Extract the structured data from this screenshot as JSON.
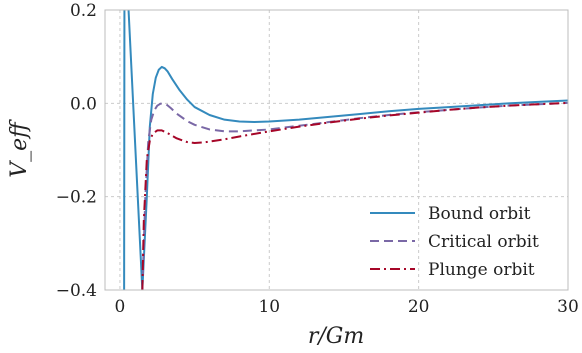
{
  "chart_data": {
    "type": "line",
    "title": "",
    "xlabel": "r/Gm",
    "ylabel": "V_eff",
    "xlim": [
      -1,
      30
    ],
    "ylim": [
      -0.4,
      0.2
    ],
    "x_ticks": [
      0,
      10,
      20,
      30
    ],
    "x_tick_labels": [
      "0",
      "10",
      "20",
      "30"
    ],
    "y_ticks": [
      0.2,
      0.0,
      -0.2,
      -0.4
    ],
    "y_tick_labels": [
      "0.2",
      "0.0",
      "−0.2",
      "−0.4"
    ],
    "grid": true,
    "legend_position": "lower-right",
    "series": [
      {
        "name": "Bound orbit",
        "color": "#348abd",
        "dash": "solid",
        "x": [
          0.28,
          0.3,
          0.35,
          0.4,
          0.5,
          1.5,
          1.8,
          2.0,
          2.2,
          2.4,
          2.6,
          2.8,
          3.0,
          3.2,
          3.5,
          4.0,
          4.5,
          5.0,
          6.0,
          7.0,
          8.0,
          9.0,
          10.0,
          12.0,
          14.0,
          16.0,
          18.0,
          20.0,
          22.0,
          24.0,
          26.0,
          28.0,
          30.0
        ],
        "y": [
          -0.4,
          0.2,
          0.25,
          0.25,
          0.25,
          -0.4,
          -0.2,
          -0.05,
          0.02,
          0.055,
          0.072,
          0.078,
          0.075,
          0.068,
          0.052,
          0.028,
          0.008,
          -0.008,
          -0.025,
          -0.035,
          -0.039,
          -0.04,
          -0.039,
          -0.035,
          -0.029,
          -0.023,
          -0.017,
          -0.012,
          -0.008,
          -0.004,
          0.0,
          0.003,
          0.006
        ]
      },
      {
        "name": "Critical orbit",
        "color": "#7a68a6",
        "dash": "dashed",
        "x": [
          1.5,
          1.7,
          1.9,
          2.1,
          2.3,
          2.5,
          2.7,
          2.9,
          3.1,
          3.4,
          3.8,
          4.5,
          5.0,
          6.0,
          7.0,
          8.0,
          10.0,
          12.0,
          14.0,
          16.0,
          18.0,
          20.0,
          22.0,
          24.0,
          26.0,
          28.0,
          30.0
        ],
        "y": [
          -0.4,
          -0.2,
          -0.08,
          -0.035,
          -0.015,
          -0.005,
          -0.001,
          0.0,
          -0.002,
          -0.01,
          -0.022,
          -0.038,
          -0.046,
          -0.056,
          -0.06,
          -0.06,
          -0.056,
          -0.048,
          -0.04,
          -0.032,
          -0.025,
          -0.019,
          -0.014,
          -0.009,
          -0.005,
          -0.002,
          0.001
        ]
      },
      {
        "name": "Plunge orbit",
        "color": "#a60628",
        "dash": "dashdot",
        "x": [
          1.5,
          1.6,
          1.8,
          2.0,
          2.2,
          2.5,
          2.8,
          3.2,
          3.8,
          4.5,
          5.0,
          5.5,
          6.0,
          7.0,
          8.0,
          10.0,
          12.0,
          14.0,
          16.0,
          18.0,
          20.0,
          22.0,
          24.0,
          26.0,
          28.0,
          30.0
        ],
        "y": [
          -0.4,
          -0.25,
          -0.12,
          -0.08,
          -0.065,
          -0.058,
          -0.058,
          -0.064,
          -0.075,
          -0.083,
          -0.085,
          -0.084,
          -0.082,
          -0.077,
          -0.071,
          -0.06,
          -0.05,
          -0.041,
          -0.033,
          -0.026,
          -0.02,
          -0.014,
          -0.009,
          -0.005,
          -0.002,
          0.001
        ]
      }
    ]
  }
}
